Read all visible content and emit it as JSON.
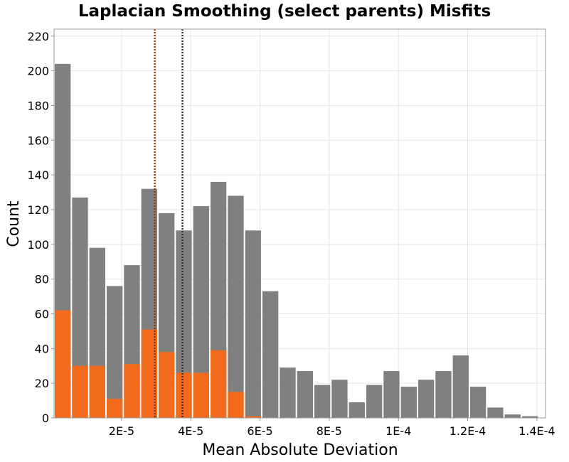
{
  "chart_data": {
    "type": "bar",
    "title": "Laplacian Smoothing (select parents) Misfits",
    "xlabel": "Mean Absolute Deviation",
    "ylabel": "Count",
    "xlim": [
      5e-07,
      0.0001425
    ],
    "ylim": [
      0,
      224
    ],
    "bin_width": 5e-06,
    "x_ticks": [
      {
        "value": 2e-05,
        "label": "2E-5"
      },
      {
        "value": 4e-05,
        "label": "4E-5"
      },
      {
        "value": 6e-05,
        "label": "6E-5"
      },
      {
        "value": 8e-05,
        "label": "8E-5"
      },
      {
        "value": 0.0001,
        "label": "1E-4"
      },
      {
        "value": 0.00012,
        "label": "1.2E-4"
      },
      {
        "value": 0.00014,
        "label": "1.4E-4"
      }
    ],
    "y_ticks": [
      0,
      20,
      40,
      60,
      80,
      100,
      120,
      140,
      160,
      180,
      200,
      220
    ],
    "grid": true,
    "legend": "none",
    "series": [
      {
        "color": "#808080",
        "x": [
          3e-06,
          8e-06,
          1.3e-05,
          1.8e-05,
          2.3e-05,
          2.8e-05,
          3.3e-05,
          3.8e-05,
          4.3e-05,
          4.8e-05,
          5.3e-05,
          5.8e-05,
          6.3e-05,
          6.8e-05,
          7.3e-05,
          7.8e-05,
          8.3e-05,
          8.8e-05,
          9.3e-05,
          9.8e-05,
          0.000103,
          0.000108,
          0.000113,
          0.000118,
          0.000123,
          0.000128,
          0.000133,
          0.000138
        ],
        "values": [
          204,
          127,
          98,
          76,
          88,
          132,
          118,
          108,
          122,
          136,
          128,
          108,
          73,
          29,
          27,
          19,
          22,
          9,
          19,
          27,
          18,
          22,
          27,
          36,
          18,
          6,
          2,
          1
        ]
      },
      {
        "color": "#f26b1d",
        "x": [
          3e-06,
          8e-06,
          1.3e-05,
          1.8e-05,
          2.3e-05,
          2.8e-05,
          3.3e-05,
          3.8e-05,
          4.3e-05,
          4.8e-05,
          5.3e-05,
          5.8e-05
        ],
        "values": [
          62,
          30,
          30,
          11,
          31,
          51,
          38,
          26,
          26,
          39,
          15,
          1
        ]
      }
    ],
    "reference_lines": [
      {
        "x": 2.96e-05,
        "color": "#8b3a0f",
        "style": "dotted"
      },
      {
        "x": 3.76e-05,
        "color": "#333333",
        "style": "dotted"
      }
    ],
    "colors": {
      "background": "#ffffff",
      "grid": "#e6e6e6",
      "frame": "#999999"
    }
  }
}
